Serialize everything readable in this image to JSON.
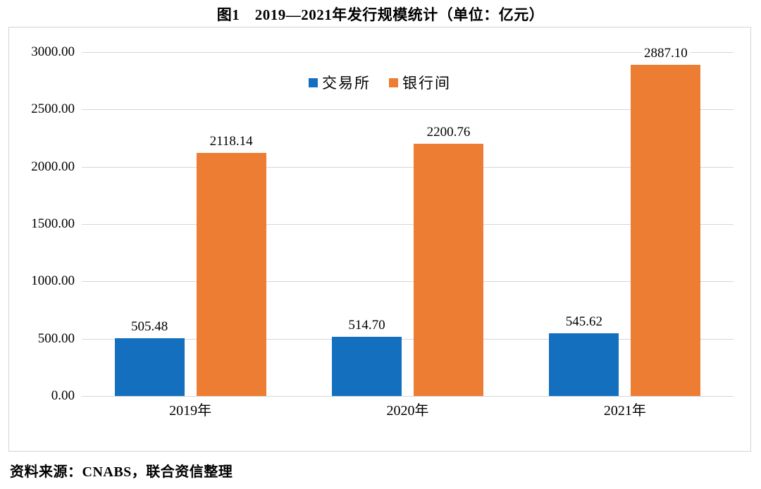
{
  "title": "图1　2019—2021年发行规模统计（单位：亿元）",
  "source": "资料来源：CNABS，联合资信整理",
  "colors": {
    "exchange_blue": "#1470bf",
    "interbank_orange": "#ec7d33",
    "gridline": "#d6d6d6",
    "frame_border": "#d4d4d4",
    "text": "#000000"
  },
  "chart_data": {
    "type": "bar",
    "categories": [
      "2019年",
      "2020年",
      "2021年"
    ],
    "series": [
      {
        "name": "交易所",
        "color": "#1470bf",
        "values": [
          505.48,
          514.7,
          545.62
        ],
        "labels": [
          "505.48",
          "514.70",
          "545.62"
        ]
      },
      {
        "name": "银行间",
        "color": "#ec7d33",
        "values": [
          2118.14,
          2200.76,
          2887.1
        ],
        "labels": [
          "2118.14",
          "2200.76",
          "2887.10"
        ]
      }
    ],
    "title": "图1　2019—2021年发行规模统计（单位：亿元）",
    "xlabel": "",
    "ylabel": "",
    "ylim": [
      0,
      3000
    ],
    "ytick_step": 500,
    "ytick_labels": [
      "0.00",
      "500.00",
      "1000.00",
      "1500.00",
      "2000.00",
      "2500.00",
      "3000.00"
    ],
    "grid": true,
    "legend_position": "top-center",
    "value_labels_shown": true
  }
}
